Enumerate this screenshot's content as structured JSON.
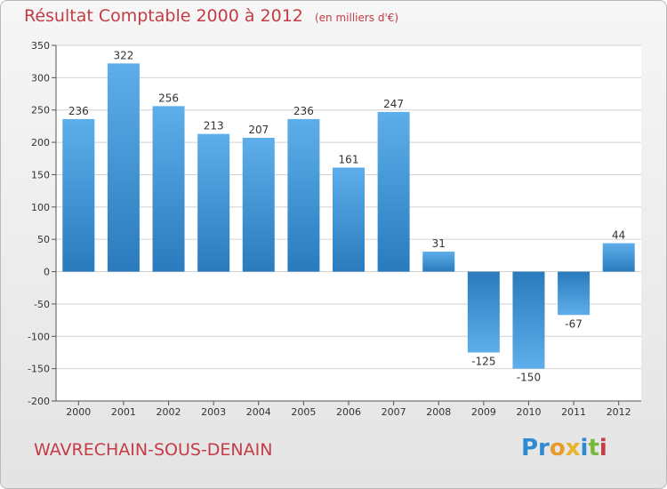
{
  "title": {
    "main": "Résultat Comptable 2000 à 2012",
    "sub": "(en milliers d'€)"
  },
  "commune": "WAVRECHAIN-SOUS-DENAIN",
  "logo": {
    "parts": [
      "Pr",
      "o",
      "x",
      "i",
      "t",
      "i"
    ]
  },
  "colors": {
    "title": "#c43c45",
    "bar_top": "#5daeea",
    "bar_bottom": "#2a7bbd",
    "grid": "#d2d2d2",
    "axis": "#555555"
  },
  "chart_data": {
    "type": "bar",
    "categories": [
      "2000",
      "2001",
      "2002",
      "2003",
      "2004",
      "2005",
      "2006",
      "2007",
      "2008",
      "2009",
      "2010",
      "2011",
      "2012"
    ],
    "values": [
      236,
      322,
      256,
      213,
      207,
      236,
      161,
      247,
      31,
      -125,
      -150,
      -67,
      44
    ],
    "data_labels": [
      "236",
      "322",
      "256",
      "213",
      "207",
      "236",
      "161",
      "247",
      "31",
      "-125",
      "-150",
      "-67",
      "44"
    ],
    "y_ticks": [
      350,
      300,
      250,
      200,
      150,
      100,
      50,
      0,
      -50,
      -100,
      -150,
      -200
    ],
    "y_tick_labels": [
      "350",
      "300",
      "250",
      "200",
      "150",
      "100",
      "50",
      "0",
      "-50",
      "-100",
      "-150",
      "-200"
    ],
    "ylim": [
      -200,
      350
    ],
    "grid": true,
    "legend": "none"
  }
}
